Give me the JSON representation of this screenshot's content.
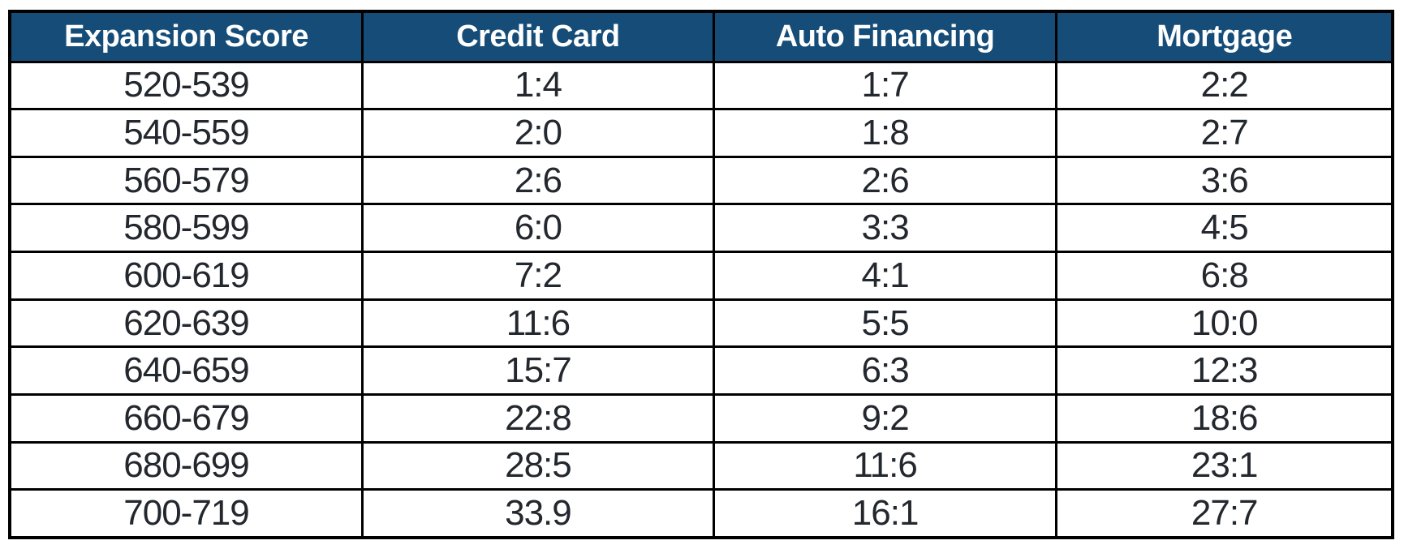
{
  "colors": {
    "header_bg": "#164D78",
    "header_text": "#FFFFFF",
    "cell_text": "#23272E",
    "border": "#000000"
  },
  "chart_data": {
    "type": "table",
    "columns": [
      "Expansion Score",
      "Credit Card",
      "Auto Financing",
      "Mortgage"
    ],
    "rows": [
      [
        "520-539",
        "1:4",
        "1:7",
        "2:2"
      ],
      [
        "540-559",
        "2:0",
        "1:8",
        "2:7"
      ],
      [
        "560-579",
        "2:6",
        "2:6",
        "3:6"
      ],
      [
        "580-599",
        "6:0",
        "3:3",
        "4:5"
      ],
      [
        "600-619",
        "7:2",
        "4:1",
        "6:8"
      ],
      [
        "620-639",
        "11:6",
        "5:5",
        "10:0"
      ],
      [
        "640-659",
        "15:7",
        "6:3",
        "12:3"
      ],
      [
        "660-679",
        "22:8",
        "9:2",
        "18:6"
      ],
      [
        "680-699",
        "28:5",
        "11:6",
        "23:1"
      ],
      [
        "700-719",
        "33.9",
        "16:1",
        "27:7"
      ]
    ],
    "title": "",
    "legend": "none",
    "grid": "on"
  }
}
